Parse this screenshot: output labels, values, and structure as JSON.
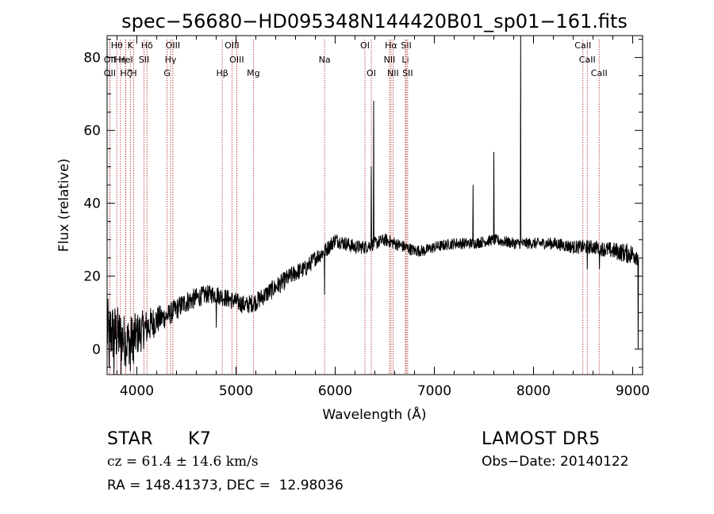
{
  "chart_data": {
    "type": "line",
    "title": "spec−56680−HD095348N144420B01_sp01−161.fits",
    "xlabel": "Wavelength (Å)",
    "ylabel": "Flux (relative)",
    "xlim": [
      3700,
      9100
    ],
    "ylim": [
      -7,
      86
    ],
    "xticks": [
      4000,
      5000,
      6000,
      7000,
      8000,
      9000
    ],
    "yticks": [
      0,
      20,
      40,
      60,
      80
    ],
    "grid": false,
    "line_color": "#000000",
    "marker_color": "#b22222",
    "spectral_lines": [
      {
        "label": "Hθ",
        "wavelength": 3798,
        "row": 1
      },
      {
        "label": "K",
        "wavelength": 3934,
        "row": 1
      },
      {
        "label": "Hδ",
        "wavelength": 4102,
        "row": 1
      },
      {
        "label": "OIII",
        "wavelength": 4363,
        "row": 1
      },
      {
        "label": "OIII",
        "wavelength": 4959,
        "row": 1
      },
      {
        "label": "OI",
        "wavelength": 6300,
        "row": 1
      },
      {
        "label": "Hα",
        "wavelength": 6563,
        "row": 1
      },
      {
        "label": "SII",
        "wavelength": 6716,
        "row": 1
      },
      {
        "label": "CaII",
        "wavelength": 8498,
        "row": 1
      },
      {
        "label": "OII",
        "wavelength": 3727,
        "row": 2
      },
      {
        "label": "Hη",
        "wavelength": 3835,
        "row": 2
      },
      {
        "label": "HeI",
        "wavelength": 3889,
        "row": 2
      },
      {
        "label": "SII",
        "wavelength": 4072,
        "row": 2
      },
      {
        "label": "Hγ",
        "wavelength": 4340,
        "row": 2
      },
      {
        "label": "OIII",
        "wavelength": 5007,
        "row": 2
      },
      {
        "label": "Na",
        "wavelength": 5893,
        "row": 2
      },
      {
        "label": "NII",
        "wavelength": 6548,
        "row": 2
      },
      {
        "label": "Li",
        "wavelength": 6708,
        "row": 2
      },
      {
        "label": "CaII",
        "wavelength": 8542,
        "row": 2
      },
      {
        "label": "OII",
        "wavelength": 3727,
        "row": 3
      },
      {
        "label": "Hζ",
        "wavelength": 3889,
        "row": 3
      },
      {
        "label": "H",
        "wavelength": 3968,
        "row": 3
      },
      {
        "label": "G",
        "wavelength": 4305,
        "row": 3
      },
      {
        "label": "Hβ",
        "wavelength": 4861,
        "row": 3
      },
      {
        "label": "Mg",
        "wavelength": 5175,
        "row": 3
      },
      {
        "label": "OI",
        "wavelength": 6364,
        "row": 3
      },
      {
        "label": "NII",
        "wavelength": 6583,
        "row": 3
      },
      {
        "label": "SII",
        "wavelength": 6731,
        "row": 3
      },
      {
        "label": "CaII",
        "wavelength": 8662,
        "row": 3
      }
    ],
    "continuum": [
      [
        3700,
        5
      ],
      [
        3800,
        4
      ],
      [
        3900,
        2
      ],
      [
        4000,
        4
      ],
      [
        4100,
        6
      ],
      [
        4200,
        8
      ],
      [
        4300,
        9
      ],
      [
        4400,
        11
      ],
      [
        4500,
        13
      ],
      [
        4600,
        14
      ],
      [
        4700,
        15
      ],
      [
        4800,
        15
      ],
      [
        4900,
        14
      ],
      [
        5000,
        13
      ],
      [
        5100,
        12
      ],
      [
        5200,
        13
      ],
      [
        5300,
        15
      ],
      [
        5400,
        17
      ],
      [
        5500,
        19
      ],
      [
        5600,
        21
      ],
      [
        5700,
        22
      ],
      [
        5800,
        25
      ],
      [
        5900,
        27
      ],
      [
        6000,
        30
      ],
      [
        6100,
        29
      ],
      [
        6200,
        28
      ],
      [
        6300,
        28
      ],
      [
        6400,
        29
      ],
      [
        6500,
        30
      ],
      [
        6600,
        29
      ],
      [
        6700,
        28
      ],
      [
        6800,
        27
      ],
      [
        6900,
        27
      ],
      [
        7000,
        28
      ],
      [
        7200,
        29
      ],
      [
        7400,
        29
      ],
      [
        7600,
        30
      ],
      [
        7800,
        29
      ],
      [
        8000,
        29
      ],
      [
        8200,
        29
      ],
      [
        8400,
        28
      ],
      [
        8600,
        28
      ],
      [
        8800,
        27
      ],
      [
        9000,
        26
      ],
      [
        9060,
        26
      ]
    ],
    "noise_amplitude": [
      [
        3700,
        9
      ],
      [
        3900,
        7
      ],
      [
        4100,
        5
      ],
      [
        4300,
        3
      ],
      [
        4500,
        3
      ],
      [
        4700,
        2.5
      ],
      [
        5000,
        2.5
      ],
      [
        5500,
        2.5
      ],
      [
        6000,
        2
      ],
      [
        7000,
        1.5
      ],
      [
        8000,
        1.5
      ],
      [
        8700,
        2
      ],
      [
        9060,
        3
      ]
    ],
    "features": [
      {
        "wavelength": 3720,
        "flux": -5
      },
      {
        "wavelength": 3770,
        "flux": -7
      },
      {
        "wavelength": 3840,
        "flux": -7
      },
      {
        "wavelength": 3934,
        "flux": -6
      },
      {
        "wavelength": 3968,
        "flux": -4
      },
      {
        "wavelength": 4800,
        "flux": 6
      },
      {
        "wavelength": 5893,
        "flux": 15
      },
      {
        "wavelength": 6363,
        "flux": 50
      },
      {
        "wavelength": 6388,
        "flux": 68
      },
      {
        "wavelength": 7390,
        "flux": 45
      },
      {
        "wavelength": 7600,
        "flux": 54
      },
      {
        "wavelength": 7870,
        "flux": 86
      },
      {
        "wavelength": 8542,
        "flux": 22
      },
      {
        "wavelength": 8665,
        "flux": 22
      },
      {
        "wavelength": 9055,
        "flux": 0
      }
    ]
  },
  "info": {
    "object_class": "STAR",
    "subclass": "K7",
    "survey": "LAMOST DR5",
    "redshift_line": "cz = 61.4 ± 14.6 km/s",
    "obs_date": "Obs−Date: 20140122",
    "coords": "RA = 148.41373, DEC =  12.98036"
  }
}
